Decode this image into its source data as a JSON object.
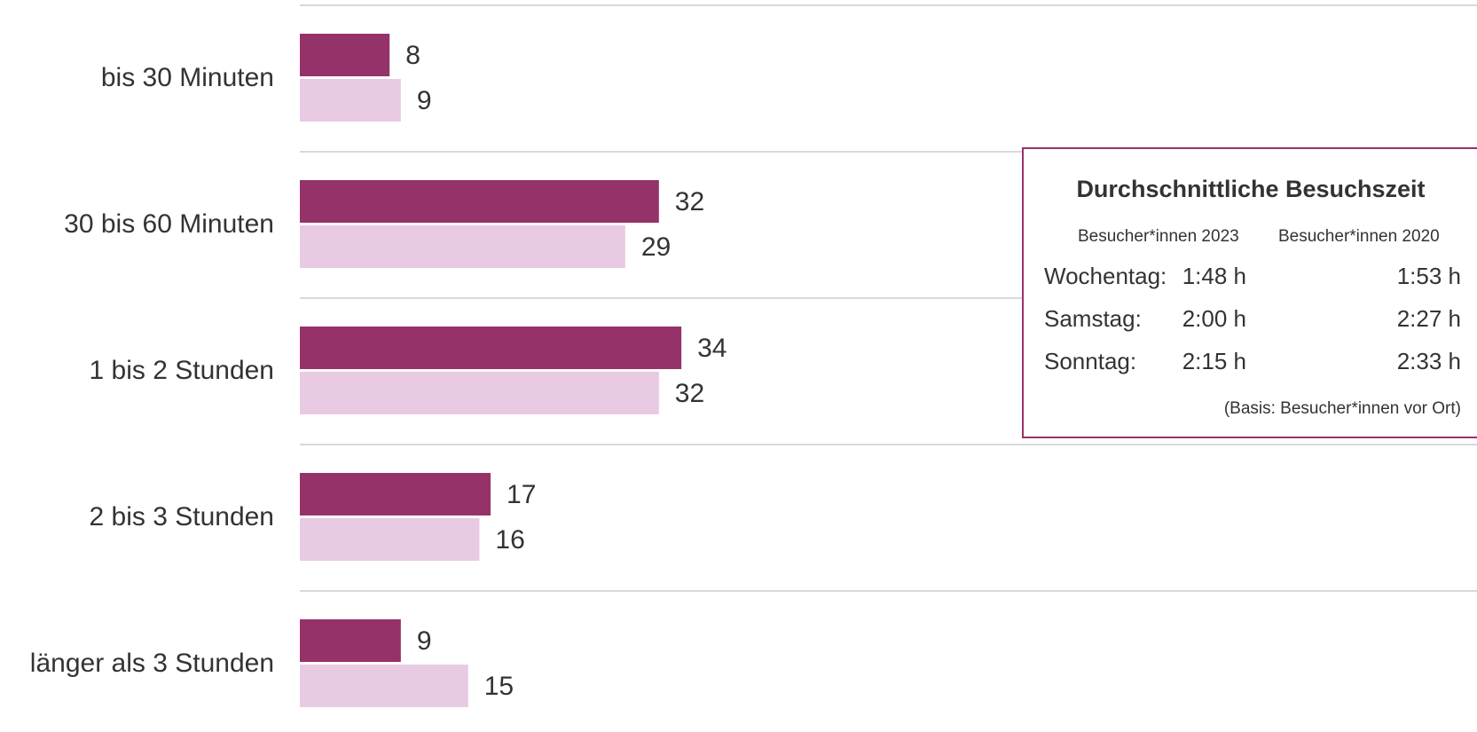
{
  "chart_data": {
    "type": "bar",
    "orientation": "horizontal",
    "categories": [
      "bis 30 Minuten",
      "30 bis 60 Minuten",
      "1 bis 2 Stunden",
      "2 bis 3 Stunden",
      "länger als 3 Stunden"
    ],
    "series": [
      {
        "values": [
          8,
          32,
          34,
          17,
          9
        ],
        "color": "#96326a"
      },
      {
        "values": [
          9,
          29,
          32,
          16,
          15
        ],
        "color": "#e8cae3"
      }
    ],
    "xlim": [
      0,
      100
    ],
    "grid": true,
    "gridline_color": "#d9d9d9"
  },
  "infobox": {
    "title": "Durchschnittliche Besuchszeit",
    "col_2023": "Besucher*innen 2023",
    "col_2020": "Besucher*innen 2020",
    "rows": [
      {
        "day": "Wochentag:",
        "v2023": "1:48 h",
        "v2020": "1:53 h"
      },
      {
        "day": "Samstag:",
        "v2023": "2:00 h",
        "v2020": "2:27 h"
      },
      {
        "day": "Sonntag:",
        "v2023": "2:15 h",
        "v2020": "2:33 h"
      }
    ],
    "note": "(Basis: Besucher*innen vor Ort)",
    "border_color": "#96326a"
  }
}
